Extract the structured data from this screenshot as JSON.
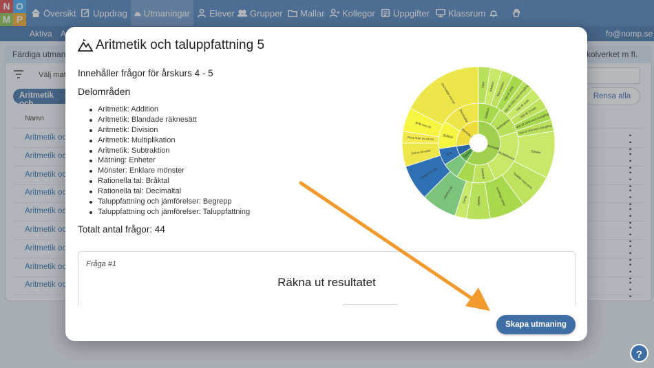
{
  "logo": {
    "letters": [
      "N",
      "O",
      "M",
      "P"
    ],
    "colors": [
      "#e04040",
      "#3fa9f5",
      "#8bc34a",
      "#f5a623"
    ]
  },
  "nav": {
    "items": [
      {
        "label": "Översikt",
        "icon": "home-icon"
      },
      {
        "label": "Uppdrag",
        "icon": "edit-icon"
      },
      {
        "label": "Utmaningar",
        "icon": "mountain-icon",
        "active": true
      },
      {
        "label": "Elever",
        "icon": "person-icon"
      },
      {
        "label": "Grupper",
        "icon": "group-icon"
      },
      {
        "label": "Mallar",
        "icon": "folder-icon"
      },
      {
        "label": "Kollegor",
        "icon": "colleagues-icon"
      },
      {
        "label": "Uppgifter",
        "icon": "tasks-icon"
      },
      {
        "label": "Klassrum",
        "icon": "classroom-icon"
      }
    ],
    "bell_icon": "bell-icon",
    "hand_icon": "hand-icon"
  },
  "subnav": {
    "item1": "Aktiva",
    "item2": "A",
    "email": "fo@nomp.se"
  },
  "background": {
    "panel_title": "Färdiga utman",
    "panel_right": "kolverket m fl.",
    "filter_label": "Välj mat",
    "pill": "Aritmetik och",
    "clear_all": "Rensa alla",
    "col_name": "Namn",
    "rows": [
      "Aritmetik oc",
      "Aritmetik oc",
      "Aritmetik oc",
      "Aritmetik oc",
      "Aritmetik oc",
      "Aritmetik oc",
      "Aritmetik oc",
      "Aritmetik oc",
      "Aritmetik oc"
    ]
  },
  "modal": {
    "title": "Aritmetik och taluppfattning 5",
    "grade_text": "Innehåller frågor för årskurs 4 - 5",
    "areas_heading": "Delområden",
    "areas": [
      "Aritmetik: Addition",
      "Aritmetik: Blandade räknesätt",
      "Aritmetik: Division",
      "Aritmetik: Multiplikation",
      "Aritmetik: Subtraktion",
      "Mätning: Enheter",
      "Mönster: Enklare mönster",
      "Rationella tal: Bråktal",
      "Rationella tal: Decimaltal",
      "Taluppfattning och jämförelser: Begrepp",
      "Taluppfattning och jämförelser: Taluppfattning"
    ],
    "total": "Totalt antal frågor: 44",
    "question_label": "Fråga #1",
    "question_text": "Räkna ut resultatet",
    "create_button": "Skapa utmaning"
  },
  "chart_data": {
    "type": "sunburst",
    "colors": {
      "aritmetik": "#b8e05a",
      "aritmetik_inner": "#a3d65a",
      "rationella": "#f2e94e",
      "rationella_outer": "#f5f542",
      "mattning": "#2f6fb3",
      "monster": "#4a90d9",
      "tal": "#7cc47c"
    },
    "inner": [
      {
        "label": "Aritmetik",
        "value": 26,
        "group": "aritmetik"
      },
      {
        "label": "Taluppf",
        "value": 3,
        "group": "tal"
      },
      {
        "label": "",
        "value": 3,
        "group": "mattning"
      },
      {
        "label": "Rationella tal",
        "value": 12,
        "group": "rationella"
      }
    ],
    "middle": [
      {
        "label": "Addition",
        "value": 4,
        "group": "aritmetik"
      },
      {
        "label": "Subtraktion",
        "value": 5,
        "group": "aritmetik"
      },
      {
        "label": "Multiplikation",
        "value": 10,
        "group": "aritmetik"
      },
      {
        "label": "Division",
        "value": 4,
        "group": "aritmetik"
      },
      {
        "label": "",
        "value": 3,
        "group": "aritmetik"
      },
      {
        "label": "",
        "value": 3,
        "group": "tal"
      },
      {
        "label": "Enh",
        "value": 3,
        "group": "mattning"
      },
      {
        "label": "Bråktal",
        "value": 5,
        "group": "rationella"
      },
      {
        "label": "Decimaltal",
        "value": 7,
        "group": "rationella"
      }
    ],
    "outer": [
      {
        "label": "Lägg",
        "value": 1,
        "group": "aritmetik"
      },
      {
        "label": "Addition",
        "value": 1,
        "group": "aritmetik"
      },
      {
        "label": "Nära tiotalet",
        "value": 1,
        "group": "aritmetik"
      },
      {
        "label": "Upp till 1000",
        "value": 1,
        "group": "aritmetik"
      },
      {
        "label": "Upp till 1000 med övergång",
        "value": 1,
        "group": "aritmetik"
      },
      {
        "label": "Upp till 1000",
        "value": 1,
        "group": "aritmetik"
      },
      {
        "label": "Upp till 10 000",
        "value": 1,
        "group": "aritmetik"
      },
      {
        "label": "Upp till 1000 med övergång",
        "value": 1,
        "group": "aritmetik"
      },
      {
        "label": "Upp till 100 med övergång",
        "value": 1,
        "group": "aritmetik"
      },
      {
        "label": "Tabeller",
        "value": 4,
        "group": "aritmetik"
      },
      {
        "label": "Tabeller med stora",
        "value": 3,
        "group": "aritmetik"
      },
      {
        "label": "Ensiffriga faktor",
        "value": 3,
        "group": "aritmetik"
      },
      {
        "label": "Tabeller",
        "value": 2,
        "group": "aritmetik"
      },
      {
        "label": "Övrigt",
        "value": 1,
        "group": "aritmetik"
      },
      {
        "label": "Jämföra tal",
        "value": 3,
        "group": "tal"
      },
      {
        "label": "Längd och vikt",
        "value": 3,
        "group": "mattning"
      },
      {
        "label": "Del av ett antal",
        "value": 2,
        "group": "rationella"
      },
      {
        "label": "Flera delar av ett hel",
        "value": 1,
        "group": "rationella"
      },
      {
        "label": "Bråk som tal",
        "value": 2,
        "group": "rationella"
      },
      {
        "label": "Decimaltal som tal",
        "value": 7,
        "group": "rationella"
      }
    ]
  }
}
